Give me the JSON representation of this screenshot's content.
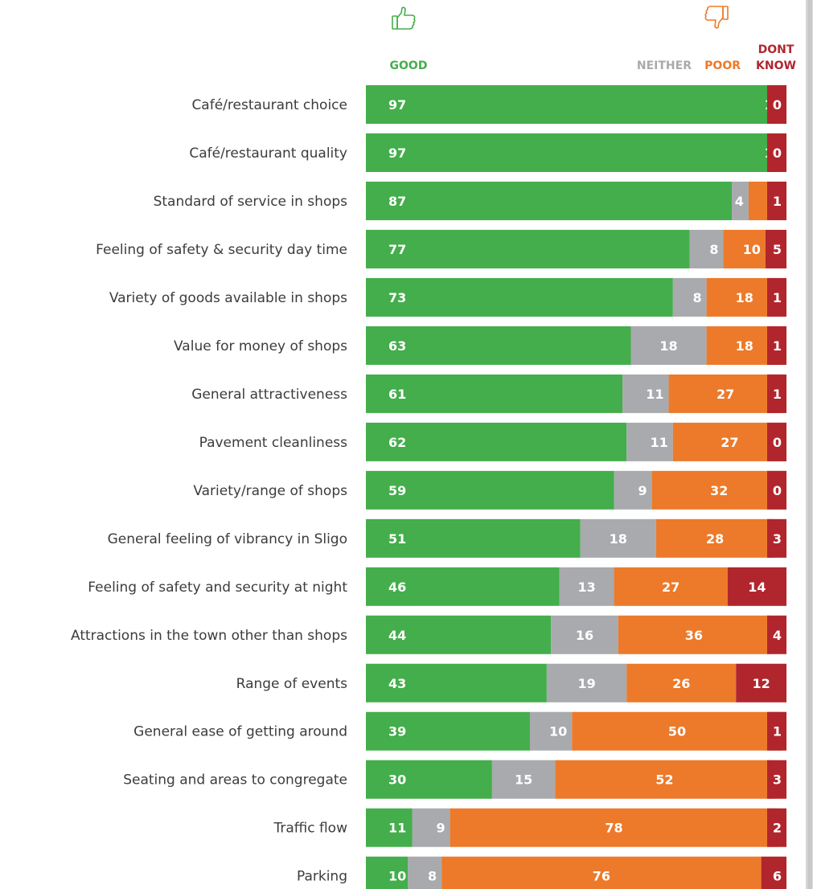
{
  "chart_data": {
    "type": "bar",
    "stacked": true,
    "orientation": "horizontal",
    "legend": [
      {
        "key": "good",
        "label": "GOOD",
        "color": "#43ae4b",
        "icon": "thumbs-up-icon"
      },
      {
        "key": "neither",
        "label": "NEITHER",
        "color": "#a9aaad"
      },
      {
        "key": "poor",
        "label": "POOR",
        "color": "#ec7a2a",
        "icon": "thumbs-down-icon"
      },
      {
        "key": "dont_know",
        "label_lines": [
          "DONT",
          "KNOW"
        ],
        "color": "#b1262d"
      }
    ],
    "categories": [
      "Café/restaurant choice",
      "Café/restaurant quality",
      "Standard of service in shops",
      "Feeling of safety & security day time",
      "Variety of goods available in shops",
      "Value for money of shops",
      "General attractiveness",
      "Pavement cleanliness",
      "Variety/range of shops",
      "General feeling of vibrancy in Sligo",
      "Feeling of safety and security at night",
      "Attractions in the town other than shops",
      "Range of events",
      "General ease of getting around",
      "Seating and areas to congregate",
      "Traffic flow",
      "Parking"
    ],
    "series": [
      {
        "name": "GOOD",
        "key": "good",
        "color": "#43ae4b",
        "values": [
          97,
          97,
          87,
          77,
          73,
          63,
          61,
          62,
          59,
          51,
          46,
          44,
          43,
          39,
          30,
          11,
          10
        ]
      },
      {
        "name": "NEITHER",
        "key": "neither",
        "color": "#a9aaad",
        "values": [
          1,
          1,
          4,
          8,
          8,
          18,
          11,
          11,
          9,
          18,
          13,
          16,
          19,
          10,
          15,
          9,
          8
        ]
      },
      {
        "name": "POOR",
        "key": "poor",
        "color": "#ec7a2a",
        "values": [
          2,
          2,
          8,
          10,
          18,
          18,
          27,
          27,
          32,
          28,
          27,
          36,
          26,
          50,
          52,
          78,
          76
        ]
      },
      {
        "name": "DONT KNOW",
        "key": "dont_know",
        "color": "#b1262d",
        "values": [
          0,
          0,
          1,
          5,
          1,
          1,
          1,
          0,
          0,
          3,
          14,
          4,
          12,
          1,
          3,
          2,
          6
        ]
      }
    ],
    "value_unit": "%",
    "grid": false,
    "legend_placement": "top"
  }
}
